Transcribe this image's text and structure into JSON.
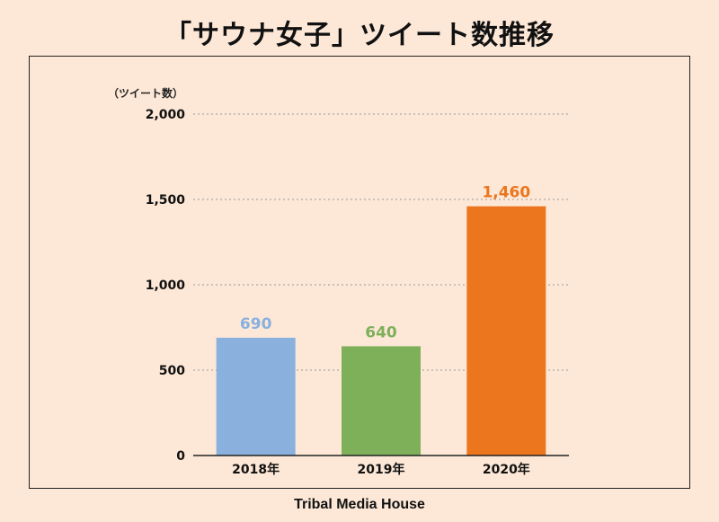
{
  "title": "「サウナ女子」ツイート数推移",
  "footer": "Tribal Media House",
  "chart_data": {
    "type": "bar",
    "title": "「サウナ女子」ツイート数推移",
    "ylabel": "（ツイート数）",
    "xlabel": "",
    "categories": [
      "2018年",
      "2019年",
      "2020年"
    ],
    "values": [
      690,
      640,
      1460
    ],
    "value_labels": [
      "690",
      "640",
      "1,460"
    ],
    "bar_colors": [
      "#8ab0de",
      "#7eb05a",
      "#ec761e"
    ],
    "ylim": [
      0,
      2000
    ],
    "yticks": [
      0,
      500,
      1000,
      1500,
      2000
    ],
    "ytick_labels": [
      "0",
      "500",
      "1,000",
      "1,500",
      "2,000"
    ],
    "grid": true,
    "legend": "none"
  }
}
